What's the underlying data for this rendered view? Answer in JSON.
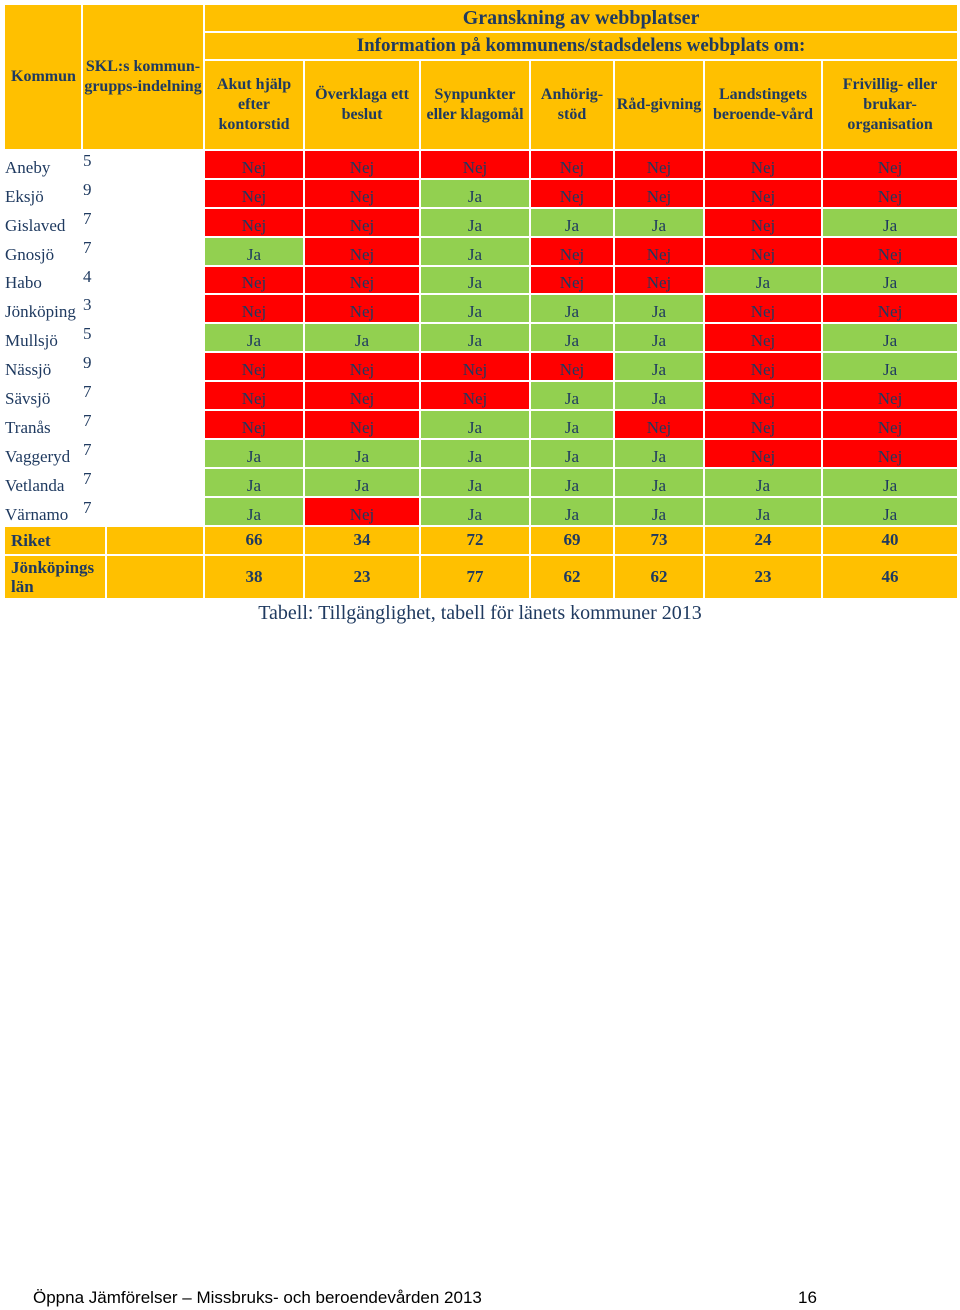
{
  "header": {
    "kommun": "Kommun",
    "skl": "SKL:s kommun-grupps-indelning",
    "title": "Granskning av webbplatser",
    "subtitle": "Information på kommunens/stadsdelens webbplats om:",
    "columns": [
      "Akut hjälp efter kontorstid",
      "Överklaga ett beslut",
      "Synpunkter eller klagomål",
      "Anhörig-stöd",
      "Råd-givning",
      "Landstingets beroende-vård",
      "Frivillig- eller brukar-organisation"
    ]
  },
  "rows": [
    {
      "name": "Aneby",
      "group": "5",
      "values": [
        "Nej",
        "Nej",
        "Nej",
        "Nej",
        "Nej",
        "Nej",
        "Nej"
      ]
    },
    {
      "name": "Eksjö",
      "group": "9",
      "values": [
        "Nej",
        "Nej",
        "Ja",
        "Nej",
        "Nej",
        "Nej",
        "Nej"
      ]
    },
    {
      "name": "Gislaved",
      "group": "7",
      "values": [
        "Nej",
        "Nej",
        "Ja",
        "Ja",
        "Ja",
        "Nej",
        "Ja"
      ]
    },
    {
      "name": "Gnosjö",
      "group": "7",
      "values": [
        "Ja",
        "Nej",
        "Ja",
        "Nej",
        "Nej",
        "Nej",
        "Nej"
      ]
    },
    {
      "name": "Habo",
      "group": "4",
      "values": [
        "Nej",
        "Nej",
        "Ja",
        "Nej",
        "Nej",
        "Ja",
        "Ja"
      ]
    },
    {
      "name": "Jönköping",
      "group": "3",
      "values": [
        "Nej",
        "Nej",
        "Ja",
        "Ja",
        "Ja",
        "Nej",
        "Nej"
      ]
    },
    {
      "name": "Mullsjö",
      "group": "5",
      "values": [
        "Ja",
        "Ja",
        "Ja",
        "Ja",
        "Ja",
        "Nej",
        "Ja"
      ]
    },
    {
      "name": "Nässjö",
      "group": "9",
      "values": [
        "Nej",
        "Nej",
        "Nej",
        "Nej",
        "Ja",
        "Nej",
        "Ja"
      ]
    },
    {
      "name": "Sävsjö",
      "group": "7",
      "values": [
        "Nej",
        "Nej",
        "Nej",
        "Ja",
        "Ja",
        "Nej",
        "Nej"
      ]
    },
    {
      "name": "Tranås",
      "group": "7",
      "values": [
        "Nej",
        "Nej",
        "Ja",
        "Ja",
        "Nej",
        "Nej",
        "Nej"
      ]
    },
    {
      "name": "Vaggeryd",
      "group": "7",
      "values": [
        "Ja",
        "Ja",
        "Ja",
        "Ja",
        "Ja",
        "Nej",
        "Nej"
      ]
    },
    {
      "name": "Vetlanda",
      "group": "7",
      "values": [
        "Ja",
        "Ja",
        "Ja",
        "Ja",
        "Ja",
        "Ja",
        "Ja"
      ]
    },
    {
      "name": "Värnamo",
      "group": "7",
      "values": [
        "Ja",
        "Nej",
        "Ja",
        "Ja",
        "Ja",
        "Ja",
        "Ja"
      ]
    }
  ],
  "summary": [
    {
      "label": "Riket",
      "values": [
        "66",
        "34",
        "72",
        "69",
        "73",
        "24",
        "40"
      ]
    },
    {
      "label": "Jönköpings län",
      "values": [
        "38",
        "23",
        "77",
        "62",
        "62",
        "23",
        "46"
      ]
    }
  ],
  "caption": "Tabell: Tillgänglighet, tabell för länets kommuner 2013",
  "footer": {
    "left": "Öppna Jämförelser – Missbruks- och beroendevården 2013",
    "page": "16"
  },
  "colors": {
    "ja": "#92d050",
    "nej": "#ff0000",
    "header": "#ffc000",
    "text": "#1f3a60"
  }
}
